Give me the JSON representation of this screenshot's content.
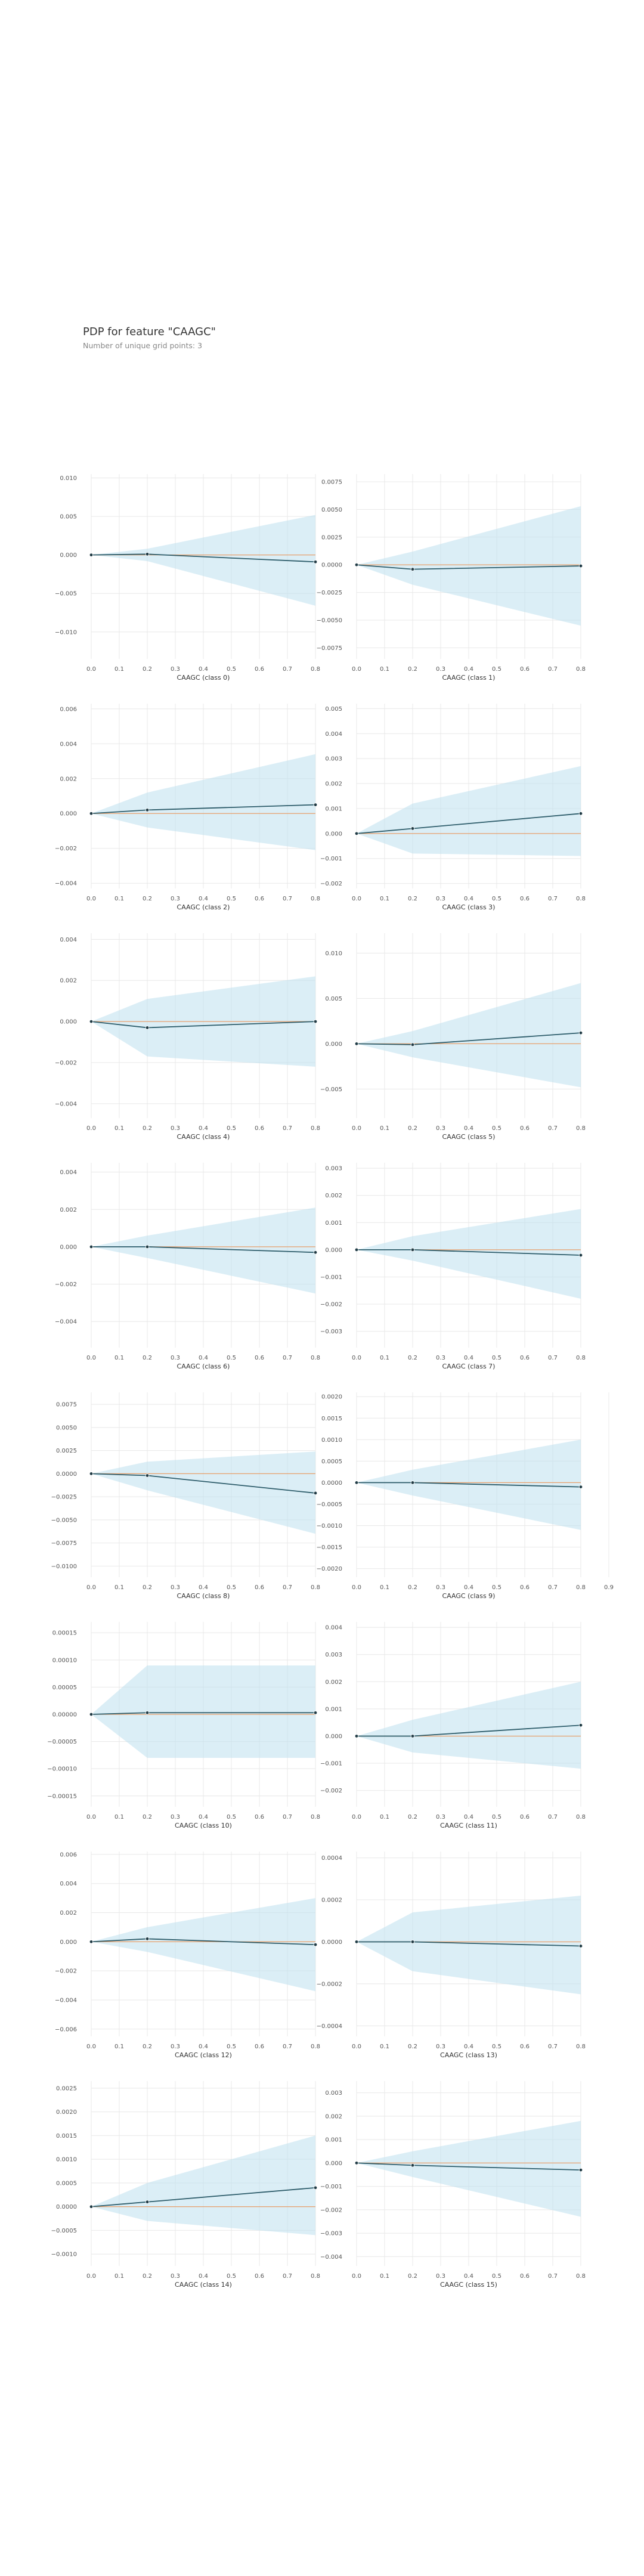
{
  "figure": {
    "title": "PDP for feature \"CAAGC\"",
    "subtitle": "Number of unique grid points: 3"
  },
  "colors": {
    "band": "#bde0ee",
    "line": "#2e5d6b",
    "marker": "#1f3a44",
    "baseline": "#e8a06c",
    "grid": "#e8e8e8",
    "tick_text": "#555555",
    "axis_label": "#333333"
  },
  "chart_data": [
    {
      "type": "line",
      "xlabel": "CAAGC (class 0)",
      "x": [
        0,
        0.2,
        0.8
      ],
      "xticks": [
        0,
        0.1,
        0.2,
        0.3,
        0.4,
        0.5,
        0.6,
        0.7,
        0.8
      ],
      "xticklabels": [
        "0.0",
        "0.1",
        "0.2",
        "0.3",
        "0.4",
        "0.5",
        "0.6",
        "0.7",
        "0.8"
      ],
      "xlim": [
        0,
        0.8
      ],
      "ylim": [
        -0.0135,
        0.0105
      ],
      "yticks": [
        -0.01,
        -0.005,
        0,
        0.005,
        0.01
      ],
      "yticklabels": [
        "−0.010",
        "−0.005",
        "0.000",
        "0.005",
        "0.010"
      ],
      "y": [
        0,
        0.0001,
        -0.0009
      ],
      "lower": [
        0,
        -0.0008,
        -0.0066
      ],
      "upper": [
        0,
        0.0008,
        0.0052
      ]
    },
    {
      "type": "line",
      "xlabel": "CAAGC (class 1)",
      "x": [
        0,
        0.2,
        0.8
      ],
      "xticks": [
        0,
        0.1,
        0.2,
        0.3,
        0.4,
        0.5,
        0.6,
        0.7,
        0.8
      ],
      "xticklabels": [
        "0.0",
        "0.1",
        "0.2",
        "0.3",
        "0.4",
        "0.5",
        "0.6",
        "0.7",
        "0.8"
      ],
      "xlim": [
        0,
        0.8
      ],
      "ylim": [
        -0.0085,
        0.0082
      ],
      "yticks": [
        -0.0075,
        -0.005,
        -0.0025,
        0,
        0.0025,
        0.005,
        0.0075
      ],
      "yticklabels": [
        "−0.0075",
        "−0.0050",
        "−0.0025",
        "0.0000",
        "0.0025",
        "0.0050",
        "0.0075"
      ],
      "y": [
        0,
        -0.0004,
        -0.0001
      ],
      "lower": [
        0,
        -0.0018,
        -0.0055
      ],
      "upper": [
        0,
        0.0012,
        0.0053
      ]
    },
    {
      "type": "line",
      "xlabel": "CAAGC (class 2)",
      "x": [
        0,
        0.2,
        0.8
      ],
      "xticks": [
        0,
        0.1,
        0.2,
        0.3,
        0.4,
        0.5,
        0.6,
        0.7,
        0.8
      ],
      "xticklabels": [
        "0.0",
        "0.1",
        "0.2",
        "0.3",
        "0.4",
        "0.5",
        "0.6",
        "0.7",
        "0.8"
      ],
      "xlim": [
        0,
        0.8
      ],
      "ylim": [
        -0.0043,
        0.0063
      ],
      "yticks": [
        -0.004,
        -0.002,
        0,
        0.002,
        0.004,
        0.006
      ],
      "yticklabels": [
        "−0.004",
        "−0.002",
        "0.000",
        "0.002",
        "0.004",
        "0.006"
      ],
      "y": [
        0,
        0.0002,
        0.0005
      ],
      "lower": [
        0,
        -0.0008,
        -0.0021
      ],
      "upper": [
        0,
        0.0012,
        0.0034
      ]
    },
    {
      "type": "line",
      "xlabel": "CAAGC (class 3)",
      "x": [
        0,
        0.2,
        0.8
      ],
      "xticks": [
        0,
        0.1,
        0.2,
        0.3,
        0.4,
        0.5,
        0.6,
        0.7,
        0.8
      ],
      "xticklabels": [
        "0.0",
        "0.1",
        "0.2",
        "0.3",
        "0.4",
        "0.5",
        "0.6",
        "0.7",
        "0.8"
      ],
      "xlim": [
        0,
        0.8
      ],
      "ylim": [
        -0.0022,
        0.0052
      ],
      "yticks": [
        -0.002,
        -0.001,
        0,
        0.001,
        0.002,
        0.003,
        0.004,
        0.005
      ],
      "yticklabels": [
        "−0.002",
        "−0.001",
        "0.000",
        "0.001",
        "0.002",
        "0.003",
        "0.004",
        "0.005"
      ],
      "y": [
        0,
        0.0002,
        0.0008
      ],
      "lower": [
        0,
        -0.0008,
        -0.0009
      ],
      "upper": [
        0,
        0.0012,
        0.0027
      ]
    },
    {
      "type": "line",
      "xlabel": "CAAGC (class 4)",
      "x": [
        0,
        0.2,
        0.8
      ],
      "xticks": [
        0,
        0.1,
        0.2,
        0.3,
        0.4,
        0.5,
        0.6,
        0.7,
        0.8
      ],
      "xticklabels": [
        "0.0",
        "0.1",
        "0.2",
        "0.3",
        "0.4",
        "0.5",
        "0.6",
        "0.7",
        "0.8"
      ],
      "xlim": [
        0,
        0.8
      ],
      "ylim": [
        -0.0047,
        0.0043
      ],
      "yticks": [
        -0.004,
        -0.002,
        0,
        0.002,
        0.004
      ],
      "yticklabels": [
        "−0.004",
        "−0.002",
        "0.000",
        "0.002",
        "0.004"
      ],
      "y": [
        0,
        -0.0003,
        0
      ],
      "lower": [
        0,
        -0.0017,
        -0.0022
      ],
      "upper": [
        0,
        0.0011,
        0.0022
      ]
    },
    {
      "type": "line",
      "xlabel": "CAAGC (class 5)",
      "x": [
        0,
        0.2,
        0.8
      ],
      "xticks": [
        0,
        0.1,
        0.2,
        0.3,
        0.4,
        0.5,
        0.6,
        0.7,
        0.8
      ],
      "xticklabels": [
        "0.0",
        "0.1",
        "0.2",
        "0.3",
        "0.4",
        "0.5",
        "0.6",
        "0.7",
        "0.8"
      ],
      "xlim": [
        0,
        0.8
      ],
      "ylim": [
        -0.0082,
        0.0122
      ],
      "yticks": [
        -0.005,
        0,
        0.005,
        0.01
      ],
      "yticklabels": [
        "−0.005",
        "0.000",
        "0.005",
        "0.010"
      ],
      "y": [
        0,
        -0.0001,
        0.0012
      ],
      "lower": [
        0,
        -0.0015,
        -0.0048
      ],
      "upper": [
        0,
        0.0014,
        0.0067
      ]
    },
    {
      "type": "line",
      "xlabel": "CAAGC (class 6)",
      "x": [
        0,
        0.2,
        0.8
      ],
      "xticks": [
        0,
        0.1,
        0.2,
        0.3,
        0.4,
        0.5,
        0.6,
        0.7,
        0.8
      ],
      "xticklabels": [
        "0.0",
        "0.1",
        "0.2",
        "0.3",
        "0.4",
        "0.5",
        "0.6",
        "0.7",
        "0.8"
      ],
      "xlim": [
        0,
        0.8
      ],
      "ylim": [
        -0.0054,
        0.0045
      ],
      "yticks": [
        -0.004,
        -0.002,
        0,
        0.002,
        0.004
      ],
      "yticklabels": [
        "−0.004",
        "−0.002",
        "0.000",
        "0.002",
        "0.004"
      ],
      "y": [
        0,
        0,
        -0.0003
      ],
      "lower": [
        0,
        -0.0006,
        -0.0025
      ],
      "upper": [
        0,
        0.0006,
        0.0021
      ]
    },
    {
      "type": "line",
      "xlabel": "CAAGC (class 7)",
      "x": [
        0,
        0.2,
        0.8
      ],
      "xticks": [
        0,
        0.1,
        0.2,
        0.3,
        0.4,
        0.5,
        0.6,
        0.7,
        0.8
      ],
      "xticklabels": [
        "0.0",
        "0.1",
        "0.2",
        "0.3",
        "0.4",
        "0.5",
        "0.6",
        "0.7",
        "0.8"
      ],
      "xlim": [
        0,
        0.8
      ],
      "ylim": [
        -0.0036,
        0.0032
      ],
      "yticks": [
        -0.003,
        -0.002,
        -0.001,
        0,
        0.001,
        0.002,
        0.003
      ],
      "yticklabels": [
        "−0.003",
        "−0.002",
        "−0.001",
        "0.000",
        "0.001",
        "0.002",
        "0.003"
      ],
      "y": [
        0,
        0,
        -0.0002
      ],
      "lower": [
        0,
        -0.0004,
        -0.0018
      ],
      "upper": [
        0,
        0.0005,
        0.0015
      ]
    },
    {
      "type": "line",
      "xlabel": "CAAGC (class 8)",
      "x": [
        0,
        0.2,
        0.8
      ],
      "xticks": [
        0,
        0.1,
        0.2,
        0.3,
        0.4,
        0.5,
        0.6,
        0.7,
        0.8
      ],
      "xticklabels": [
        "0.0",
        "0.1",
        "0.2",
        "0.3",
        "0.4",
        "0.5",
        "0.6",
        "0.7",
        "0.8"
      ],
      "xlim": [
        0,
        0.8
      ],
      "ylim": [
        -0.0112,
        0.0088
      ],
      "yticks": [
        -0.01,
        -0.0075,
        -0.005,
        -0.0025,
        0,
        0.0025,
        0.005,
        0.0075
      ],
      "yticklabels": [
        "−0.0100",
        "−0.0075",
        "−0.0050",
        "−0.0025",
        "0.0000",
        "0.0025",
        "0.0050",
        "0.0075"
      ],
      "y": [
        0,
        -0.0002,
        -0.0021
      ],
      "lower": [
        0,
        -0.0018,
        -0.0065
      ],
      "upper": [
        0,
        0.0013,
        0.0024
      ]
    },
    {
      "type": "line",
      "xlabel": "CAAGC (class 9)",
      "x": [
        0,
        0.2,
        0.8
      ],
      "xticks": [
        0,
        0.1,
        0.2,
        0.3,
        0.4,
        0.5,
        0.6,
        0.7,
        0.8,
        0.9
      ],
      "xticklabels": [
        "0.0",
        "0.1",
        "0.2",
        "0.3",
        "0.4",
        "0.5",
        "0.6",
        "0.7",
        "0.8",
        "0.9"
      ],
      "xlim": [
        0,
        0.8
      ],
      "ylim": [
        -0.0022,
        0.0021
      ],
      "yticks": [
        -0.002,
        -0.0015,
        -0.001,
        -0.0005,
        0,
        0.0005,
        0.001,
        0.0015,
        0.002
      ],
      "yticklabels": [
        "−0.0020",
        "−0.0015",
        "−0.0010",
        "−0.0005",
        "0.0000",
        "0.0005",
        "0.0010",
        "0.0015",
        "0.0020"
      ],
      "y": [
        0,
        0,
        -0.0001
      ],
      "lower": [
        0,
        -0.0003,
        -0.0011
      ],
      "upper": [
        0,
        0.0003,
        0.001
      ]
    },
    {
      "type": "line",
      "xlabel": "CAAGC (class 10)",
      "x": [
        0,
        0.2,
        0.8
      ],
      "xticks": [
        0,
        0.1,
        0.2,
        0.3,
        0.4,
        0.5,
        0.6,
        0.7,
        0.8
      ],
      "xticklabels": [
        "0.0",
        "0.1",
        "0.2",
        "0.3",
        "0.4",
        "0.5",
        "0.6",
        "0.7",
        "0.8"
      ],
      "xlim": [
        0,
        0.8
      ],
      "ylim": [
        -0.00017,
        0.00017
      ],
      "yticks": [
        -0.00015,
        -0.0001,
        -5e-05,
        0,
        5e-05,
        0.0001,
        0.00015
      ],
      "yticklabels": [
        "−0.00015",
        "−0.00010",
        "−0.00005",
        "0.00000",
        "0.00005",
        "0.00010",
        "0.00015"
      ],
      "y": [
        0,
        3e-06,
        3e-06
      ],
      "lower": [
        0,
        -8e-05,
        -8e-05
      ],
      "upper": [
        0,
        9e-05,
        9e-05
      ]
    },
    {
      "type": "line",
      "xlabel": "CAAGC (class 11)",
      "x": [
        0,
        0.2,
        0.8
      ],
      "xticks": [
        0,
        0.1,
        0.2,
        0.3,
        0.4,
        0.5,
        0.6,
        0.7,
        0.8
      ],
      "xticklabels": [
        "0.0",
        "0.1",
        "0.2",
        "0.3",
        "0.4",
        "0.5",
        "0.6",
        "0.7",
        "0.8"
      ],
      "xlim": [
        0,
        0.8
      ],
      "ylim": [
        -0.0026,
        0.0042
      ],
      "yticks": [
        -0.002,
        -0.001,
        0,
        0.001,
        0.002,
        0.003,
        0.004
      ],
      "yticklabels": [
        "−0.002",
        "−0.001",
        "0.000",
        "0.001",
        "0.002",
        "0.003",
        "0.004"
      ],
      "y": [
        0,
        0,
        0.0004
      ],
      "lower": [
        0,
        -0.0006,
        -0.0012
      ],
      "upper": [
        0,
        0.0006,
        0.002
      ]
    },
    {
      "type": "line",
      "xlabel": "CAAGC (class 12)",
      "x": [
        0,
        0.2,
        0.8
      ],
      "xticks": [
        0,
        0.1,
        0.2,
        0.3,
        0.4,
        0.5,
        0.6,
        0.7,
        0.8
      ],
      "xticklabels": [
        "0.0",
        "0.1",
        "0.2",
        "0.3",
        "0.4",
        "0.5",
        "0.6",
        "0.7",
        "0.8"
      ],
      "xlim": [
        0,
        0.8
      ],
      "ylim": [
        -0.0065,
        0.0062
      ],
      "yticks": [
        -0.006,
        -0.004,
        -0.002,
        0,
        0.002,
        0.004,
        0.006
      ],
      "yticklabels": [
        "−0.006",
        "−0.004",
        "−0.002",
        "0.000",
        "0.002",
        "0.004",
        "0.006"
      ],
      "y": [
        0,
        0.0002,
        -0.0002
      ],
      "lower": [
        0,
        -0.0007,
        -0.0034
      ],
      "upper": [
        0,
        0.001,
        0.003
      ]
    },
    {
      "type": "line",
      "xlabel": "CAAGC (class 13)",
      "x": [
        0,
        0.2,
        0.8
      ],
      "xticks": [
        0,
        0.1,
        0.2,
        0.3,
        0.4,
        0.5,
        0.6,
        0.7,
        0.8
      ],
      "xticklabels": [
        "0.0",
        "0.1",
        "0.2",
        "0.3",
        "0.4",
        "0.5",
        "0.6",
        "0.7",
        "0.8"
      ],
      "xlim": [
        0,
        0.8
      ],
      "ylim": [
        -0.00045,
        0.00043
      ],
      "yticks": [
        -0.0004,
        -0.0002,
        0,
        0.0002,
        0.0004
      ],
      "yticklabels": [
        "−0.0004",
        "−0.0002",
        "0.0000",
        "0.0002",
        "0.0004"
      ],
      "y": [
        0,
        0,
        -2e-05
      ],
      "lower": [
        0,
        -0.00014,
        -0.00025
      ],
      "upper": [
        0,
        0.00014,
        0.00022
      ]
    },
    {
      "type": "line",
      "xlabel": "CAAGC (class 14)",
      "x": [
        0,
        0.2,
        0.8
      ],
      "xticks": [
        0,
        0.1,
        0.2,
        0.3,
        0.4,
        0.5,
        0.6,
        0.7,
        0.8
      ],
      "xticklabels": [
        "0.0",
        "0.1",
        "0.2",
        "0.3",
        "0.4",
        "0.5",
        "0.6",
        "0.7",
        "0.8"
      ],
      "xlim": [
        0,
        0.8
      ],
      "ylim": [
        -0.00125,
        0.00265
      ],
      "yticks": [
        -0.001,
        -0.0005,
        0,
        0.0005,
        0.001,
        0.0015,
        0.002,
        0.0025
      ],
      "yticklabels": [
        "−0.0010",
        "−0.0005",
        "0.0000",
        "0.0005",
        "0.0010",
        "0.0015",
        "0.0020",
        "0.0025"
      ],
      "y": [
        0,
        0.0001,
        0.0004
      ],
      "lower": [
        0,
        -0.0003,
        -0.0006
      ],
      "upper": [
        0,
        0.0005,
        0.0015
      ]
    },
    {
      "type": "line",
      "xlabel": "CAAGC (class 15)",
      "x": [
        0,
        0.2,
        0.8
      ],
      "xticks": [
        0,
        0.1,
        0.2,
        0.3,
        0.4,
        0.5,
        0.6,
        0.7,
        0.8
      ],
      "xticklabels": [
        "0.0",
        "0.1",
        "0.2",
        "0.3",
        "0.4",
        "0.5",
        "0.6",
        "0.7",
        "0.8"
      ],
      "xlim": [
        0,
        0.8
      ],
      "ylim": [
        -0.0044,
        0.0035
      ],
      "yticks": [
        -0.004,
        -0.003,
        -0.002,
        -0.001,
        0,
        0.001,
        0.002,
        0.003
      ],
      "yticklabels": [
        "−0.004",
        "−0.003",
        "−0.002",
        "−0.001",
        "0.000",
        "0.001",
        "0.002",
        "0.003"
      ],
      "y": [
        0,
        -0.0001,
        -0.0003
      ],
      "lower": [
        0,
        -0.0006,
        -0.0023
      ],
      "upper": [
        0,
        0.0005,
        0.0018
      ]
    }
  ]
}
